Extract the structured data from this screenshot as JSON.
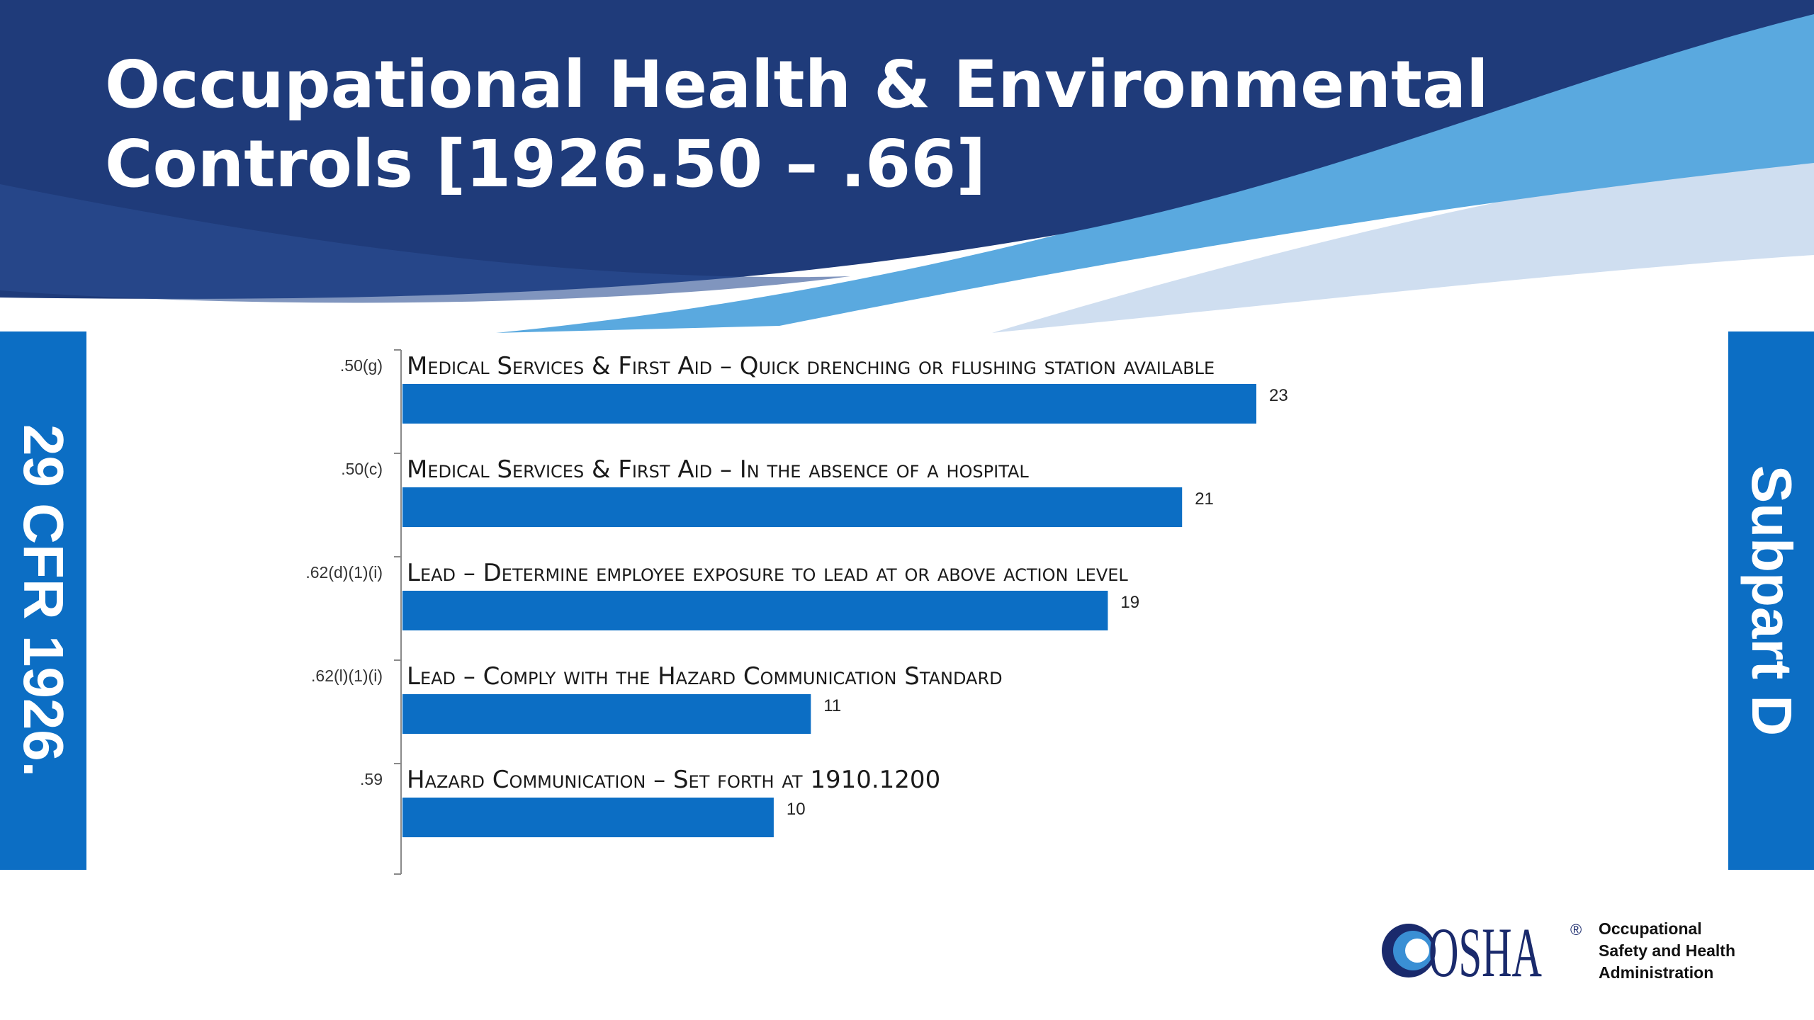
{
  "slide": {
    "title_lines": [
      "Occupational Health & Environmental",
      "Controls [1926.50 – .66]"
    ],
    "left_tab": "29 CFR 1926.",
    "right_tab": "Subpart D",
    "logo": {
      "wordmark": "OSHA",
      "registered": "®",
      "tagline_lines": [
        "Occupational",
        "Safety and Health",
        "Administration"
      ]
    },
    "colors": {
      "header_navy": "#1f3b7a",
      "wave_light_blue": "#5aa9df",
      "wave_pale_blue": "#cfdef0",
      "bar_blue": "#0c6ec4",
      "logo_navy": "#1a2a6c"
    }
  },
  "chart_data": {
    "type": "bar",
    "orientation": "horizontal",
    "categories": [
      ".50(g)",
      ".50(c)",
      ".62(d)(1)(i)",
      ".62(l)(1)(i)",
      ".59"
    ],
    "descriptions": [
      "Medical Services & First Aid – Quick drenching or flushing station available",
      "Medical Services & First Aid – In the absence of a hospital",
      "Lead – Determine employee exposure to lead at or above action level",
      "Lead – Comply with the Hazard Communication Standard",
      "Hazard Communication – Set forth at 1910.1200"
    ],
    "values": [
      23,
      21,
      19,
      11,
      10
    ],
    "xlim": [
      0,
      23
    ],
    "title": "",
    "xlabel": "",
    "ylabel": "",
    "grid": false,
    "legend": "none",
    "data_labels": true,
    "bar_color": "#0c6ec4"
  }
}
